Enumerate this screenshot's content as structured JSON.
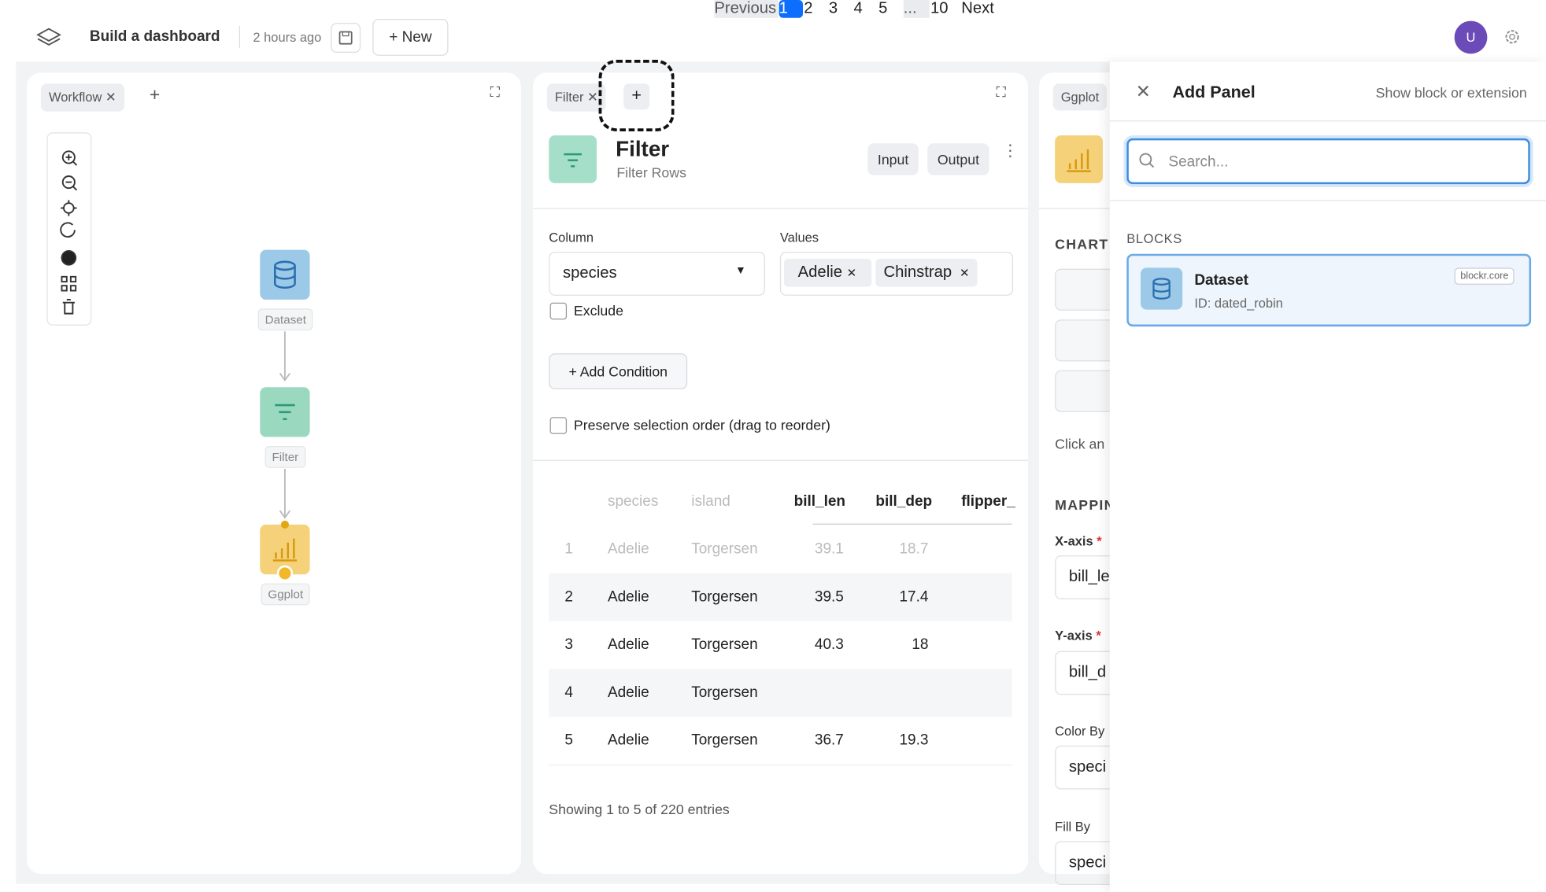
{
  "header": {
    "title": "Build a dashboard",
    "time": "2 hours ago",
    "new_button": "+ New",
    "avatar": "U"
  },
  "workflow": {
    "tab": "Workflow",
    "nodes": [
      "Dataset",
      "Filter",
      "Ggplot"
    ]
  },
  "filter": {
    "tab": "Filter",
    "title": "Filter",
    "subtitle": "Filter Rows",
    "buttons": [
      "Input",
      "Output"
    ],
    "column_label": "Column",
    "column_value": "species",
    "values_label": "Values",
    "chips": [
      "Adelie",
      "Chinstrap"
    ],
    "exclude": "Exclude",
    "add_condition": "+ Add Condition",
    "preserve": "Preserve selection order (drag to reorder)",
    "table": {
      "headers": [
        "species",
        "island",
        "bill_len",
        "bill_dep",
        "flipper_"
      ],
      "rows": [
        [
          1,
          "Adelie",
          "Torgersen",
          39.1,
          18.7
        ],
        [
          2,
          "Adelie",
          "Torgersen",
          39.5,
          17.4
        ],
        [
          3,
          "Adelie",
          "Torgersen",
          40.3,
          18
        ],
        [
          4,
          "Adelie",
          "Torgersen"
        ],
        [
          5,
          "Adelie",
          "Torgersen",
          36.7,
          19.3
        ]
      ]
    },
    "footer": "Showing 1 to 5 of 220 entries",
    "pagination": [
      "Previous",
      "1",
      "2",
      "3",
      "4",
      "5",
      "...",
      "10",
      "Next"
    ]
  },
  "ggplot": {
    "tab": "Ggplot",
    "chart": "CHART",
    "click": "Click an",
    "mapping": "MAPPIN",
    "x_label": "X-axis",
    "y_label": "Y-axis",
    "required": "*",
    "x_value": "bill_le",
    "y_value": "bill_d",
    "color_label": "Color By",
    "color_value": "speci",
    "fill_label": "Fill By",
    "fill_value": "speci"
  },
  "add_panel": {
    "title": "Add Panel",
    "hint": "Show block or extension",
    "search": "Search...",
    "blocks": "BLOCKS",
    "block": {
      "name": "Dataset",
      "id": "ID: dated_robin",
      "badge": "blockr.core"
    }
  }
}
